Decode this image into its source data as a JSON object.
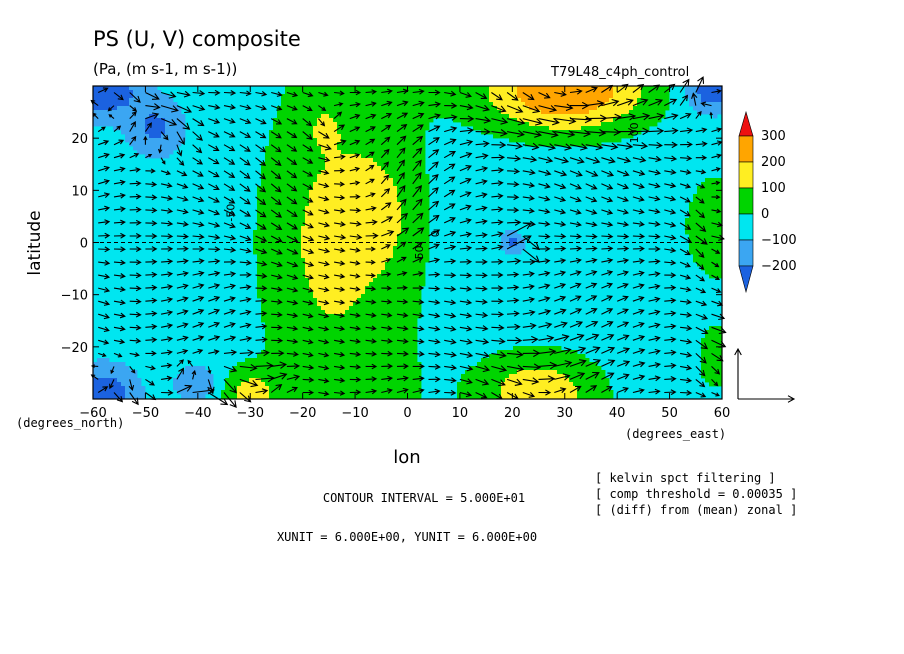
{
  "chart_data": {
    "type": "heatmap",
    "title": "PS (U, V) composite",
    "subtitle": "(Pa, (m s-1, m s-1))",
    "experiment": "T79L48_c4ph_control",
    "xlabel": "lon",
    "ylabel": "latitude",
    "x_unit_label": "(degrees_east)",
    "y_unit_label": "(degrees_north)",
    "xlim": [
      -60,
      60
    ],
    "ylim": [
      -30,
      30
    ],
    "x_ticks": [
      -60,
      -50,
      -40,
      -30,
      -20,
      -10,
      0,
      10,
      20,
      30,
      40,
      50,
      60
    ],
    "y_ticks": [
      -20,
      -10,
      0,
      10,
      20
    ],
    "color_levels": [
      -200,
      -100,
      0,
      100,
      200,
      300
    ],
    "colors": [
      "#1b62e0",
      "#3ba6f2",
      "#00e6f0",
      "#00d400",
      "#ffee22",
      "#ffa500",
      "#ee1111"
    ],
    "colorbar_labels": [
      "300",
      "200",
      "100",
      "0",
      "−100",
      "−200"
    ],
    "contour_labels": [
      "-50",
      "-50",
      "0",
      "100"
    ],
    "contour_interval": "CONTOUR INTERVAL = 5.000E+01",
    "units": "XUNIT = 6.000E+00, YUNIT = 6.000E+00",
    "notes": [
      "[ kelvin spct filtering ]",
      "[ comp threshold = 0.00035 ]",
      "[ (diff) from (mean) zonal ]"
    ],
    "field": {
      "description_free": true,
      "anomalies": [
        {
          "lon": -18,
          "lat": 0,
          "amp": 120,
          "sx": 12,
          "sy": 28
        },
        {
          "lon": -5,
          "lat": 5,
          "amp": 95,
          "sx": 7,
          "sy": 11
        },
        {
          "lon": -16,
          "lat": 22,
          "amp": 55,
          "sx": 3,
          "sy": 4
        },
        {
          "lon": 30,
          "lat": 29,
          "amp": 360,
          "sx": 16,
          "sy": 8
        },
        {
          "lon": 25,
          "lat": -29,
          "amp": 230,
          "sx": 12,
          "sy": 8
        },
        {
          "lon": -30,
          "lat": -29,
          "amp": 180,
          "sx": 6,
          "sy": 5
        },
        {
          "lon": 59,
          "lat": 3,
          "amp": 150,
          "sx": 6,
          "sy": 10
        },
        {
          "lon": 59,
          "lat": -22,
          "amp": 120,
          "sx": 4,
          "sy": 7
        },
        {
          "lon": -58,
          "lat": 29,
          "amp": -230,
          "sx": 7,
          "sy": 5
        },
        {
          "lon": -58,
          "lat": -29,
          "amp": -220,
          "sx": 6,
          "sy": 5
        },
        {
          "lon": 58,
          "lat": 29,
          "amp": -220,
          "sx": 5,
          "sy": 4
        },
        {
          "lon": 20,
          "lat": 0,
          "amp": -160,
          "sx": 2,
          "sy": 2
        },
        {
          "lon": -40,
          "lat": -27,
          "amp": -150,
          "sx": 4,
          "sy": 3
        },
        {
          "lon": -48,
          "lat": 22,
          "amp": -160,
          "sx": 5,
          "sy": 5
        }
      ],
      "baseline": -60
    },
    "vectors": {
      "lon_step": 3,
      "lat_step": 2.5,
      "ref_u": 6,
      "ref_v": 6
    }
  }
}
